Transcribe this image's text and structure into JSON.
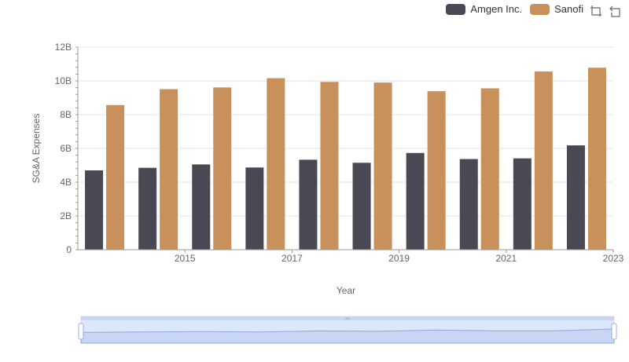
{
  "legend": {
    "items": [
      "Amgen Inc.",
      "Sanofi"
    ]
  },
  "chart_data": {
    "type": "bar",
    "x": [
      2014,
      2015,
      2016,
      2017,
      2018,
      2019,
      2020,
      2021,
      2022,
      2023
    ],
    "x_tick_labels": [
      "2015",
      "2017",
      "2019",
      "2021",
      "2023"
    ],
    "series": [
      {
        "name": "Amgen Inc.",
        "color": "#4a4953",
        "values": [
          4.7,
          4.85,
          5.05,
          4.87,
          5.33,
          5.15,
          5.73,
          5.37,
          5.41,
          6.18
        ]
      },
      {
        "name": "Sanofi",
        "color": "#c8915c",
        "values": [
          8.57,
          9.51,
          9.61,
          10.16,
          9.94,
          9.9,
          9.39,
          9.56,
          10.56,
          10.78
        ]
      }
    ],
    "y_tick_labels": [
      "0",
      "2B",
      "4B",
      "6B",
      "8B",
      "10B",
      "12B"
    ],
    "ylim": [
      0,
      12
    ],
    "ylabel": "SG&A Expenses",
    "xlabel": "Year",
    "grid": true,
    "legend_position": "top-right"
  },
  "icons": {
    "zoom": "zoom-icon",
    "restore": "restore-icon"
  }
}
